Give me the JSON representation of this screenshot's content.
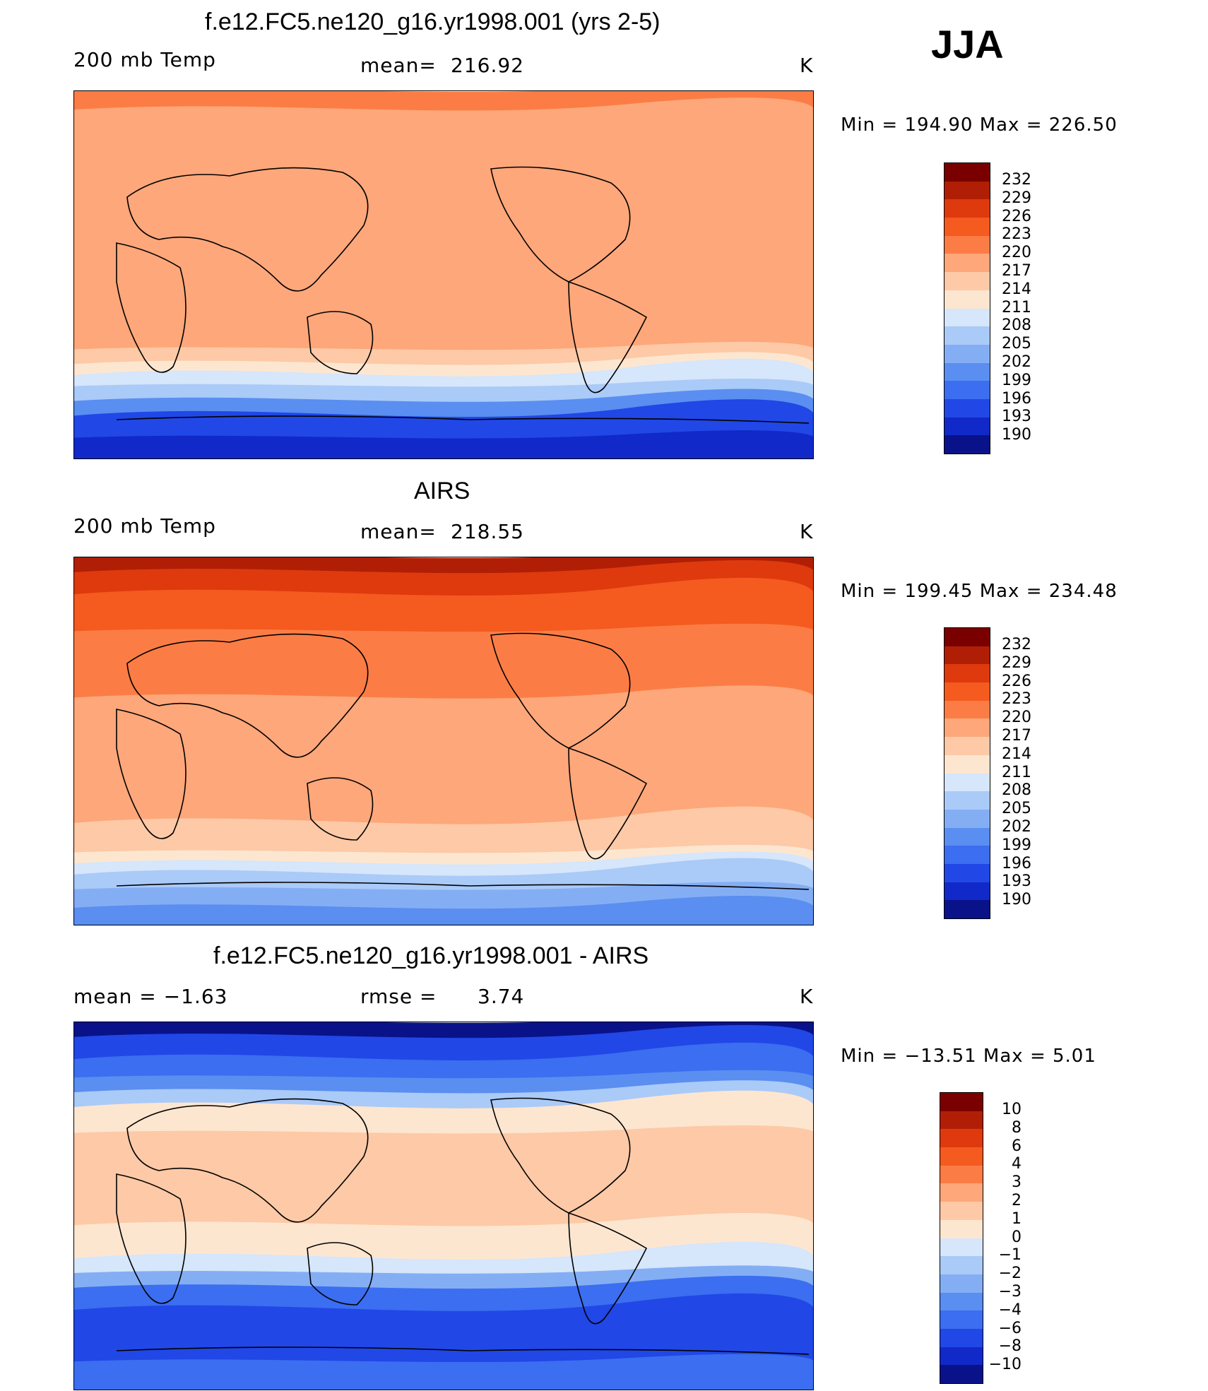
{
  "season_label": "JJA",
  "panels": [
    {
      "title": "f.e12.FC5.ne120_g16.yr1998.001 (yrs 2-5)",
      "left_label": "200 mb Temp",
      "stat_label": "mean=",
      "stat_value": "216.92",
      "units": "K",
      "minmax": "Min  =  194.90  Max  =  226.50",
      "colorbar": {
        "labels": [
          "232",
          "229",
          "226",
          "223",
          "220",
          "217",
          "214",
          "211",
          "208",
          "205",
          "202",
          "199",
          "196",
          "193",
          "190"
        ],
        "colors": [
          "#7a0000",
          "#b01f05",
          "#de3a0e",
          "#f55a1e",
          "#fb7d45",
          "#fda77a",
          "#fdc9a6",
          "#fde6d0",
          "#d6e6fb",
          "#aacaf8",
          "#84aef4",
          "#5a8ef0",
          "#3b6ef0",
          "#2147e6",
          "#1129c8",
          "#0a1289"
        ]
      },
      "bands": [
        {
          "y": 0,
          "color": "#fb7d45"
        },
        {
          "y": 0.05,
          "color": "#fda77a"
        },
        {
          "y": 0.35,
          "color": "#fda77a"
        },
        {
          "y": 0.7,
          "color": "#fdc9a6"
        },
        {
          "y": 0.74,
          "color": "#fde6d0"
        },
        {
          "y": 0.77,
          "color": "#d6e6fb"
        },
        {
          "y": 0.8,
          "color": "#aacaf8"
        },
        {
          "y": 0.84,
          "color": "#5a8ef0"
        },
        {
          "y": 0.88,
          "color": "#2147e6"
        },
        {
          "y": 0.94,
          "color": "#1129c8"
        }
      ]
    },
    {
      "title": "AIRS",
      "left_label": "200 mb Temp",
      "stat_label": "mean=",
      "stat_value": "218.55",
      "units": "K",
      "minmax": "Min  =  199.45  Max  =  234.48",
      "colorbar": {
        "labels": [
          "232",
          "229",
          "226",
          "223",
          "220",
          "217",
          "214",
          "211",
          "208",
          "205",
          "202",
          "199",
          "196",
          "193",
          "190"
        ],
        "colors": [
          "#7a0000",
          "#b01f05",
          "#de3a0e",
          "#f55a1e",
          "#fb7d45",
          "#fda77a",
          "#fdc9a6",
          "#fde6d0",
          "#d6e6fb",
          "#aacaf8",
          "#84aef4",
          "#5a8ef0",
          "#3b6ef0",
          "#2147e6",
          "#1129c8",
          "#0a1289"
        ]
      },
      "bands": [
        {
          "y": 0,
          "color": "#b01f05"
        },
        {
          "y": 0.04,
          "color": "#de3a0e"
        },
        {
          "y": 0.1,
          "color": "#f55a1e"
        },
        {
          "y": 0.2,
          "color": "#fb7d45"
        },
        {
          "y": 0.38,
          "color": "#fda77a"
        },
        {
          "y": 0.72,
          "color": "#fdc9a6"
        },
        {
          "y": 0.8,
          "color": "#fde6d0"
        },
        {
          "y": 0.83,
          "color": "#d6e6fb"
        },
        {
          "y": 0.86,
          "color": "#aacaf8"
        },
        {
          "y": 0.9,
          "color": "#84aef4"
        },
        {
          "y": 0.95,
          "color": "#5a8ef0"
        }
      ]
    },
    {
      "title": "f.e12.FC5.ne120_g16.yr1998.001 - AIRS",
      "left_label": "mean  =    −1.63",
      "stat_label": "rmse  =",
      "stat_value": "3.74",
      "units": "K",
      "minmax": "Min  =  −13.51  Max  =      5.01",
      "colorbar": {
        "labels": [
          "10",
          "8",
          "6",
          "4",
          "3",
          "2",
          "1",
          "0",
          "−1",
          "−2",
          "−3",
          "−4",
          "−6",
          "−8",
          "−10"
        ],
        "colors": [
          "#7a0000",
          "#b01f05",
          "#de3a0e",
          "#f55a1e",
          "#fb7d45",
          "#fda77a",
          "#fdc9a6",
          "#fde6d0",
          "#d6e6fb",
          "#aacaf8",
          "#84aef4",
          "#5a8ef0",
          "#3b6ef0",
          "#2147e6",
          "#1129c8",
          "#0a1289"
        ]
      },
      "bands": [
        {
          "y": 0,
          "color": "#0a1289"
        },
        {
          "y": 0.04,
          "color": "#2147e6"
        },
        {
          "y": 0.1,
          "color": "#3b6ef0"
        },
        {
          "y": 0.15,
          "color": "#5a8ef0"
        },
        {
          "y": 0.19,
          "color": "#aacaf8"
        },
        {
          "y": 0.23,
          "color": "#fde6d0"
        },
        {
          "y": 0.3,
          "color": "#fdc9a6"
        },
        {
          "y": 0.55,
          "color": "#fde6d0"
        },
        {
          "y": 0.64,
          "color": "#d6e6fb"
        },
        {
          "y": 0.68,
          "color": "#84aef4"
        },
        {
          "y": 0.72,
          "color": "#3b6ef0"
        },
        {
          "y": 0.78,
          "color": "#2147e6"
        },
        {
          "y": 0.92,
          "color": "#3b6ef0"
        }
      ]
    }
  ]
}
